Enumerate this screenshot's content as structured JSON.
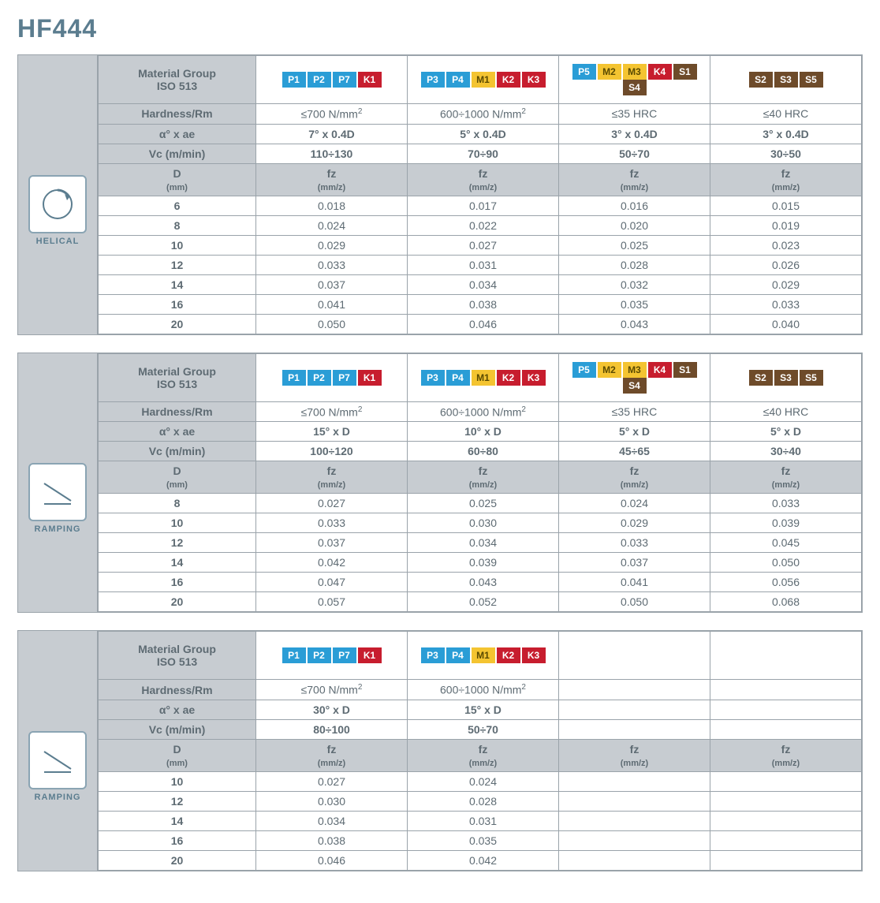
{
  "title": "HF444",
  "labels": {
    "material_group": "Material Group\nISO 513",
    "hardness": "Hardness/Rm",
    "alpha_ae": "α° x ae",
    "vc": "Vc (m/min)",
    "d": "D",
    "d_unit": "(mm)",
    "fz": "fz",
    "fz_unit": "(mm/z)"
  },
  "tag_colors": {
    "P1": "blue",
    "P2": "blue",
    "P3": "blue",
    "P4": "blue",
    "P5": "blue",
    "P7": "blue",
    "K1": "red",
    "K2": "red",
    "K3": "red",
    "K4": "red",
    "M1": "yellow",
    "M2": "yellow",
    "M3": "yellow",
    "S1": "brown",
    "S2": "brown",
    "S3": "brown",
    "S4": "brown",
    "S5": "brown"
  },
  "blocks": [
    {
      "icon": "helical",
      "icon_label": "HELICAL",
      "cols": [
        {
          "tags": [
            "P1",
            "P2",
            "P7",
            "K1"
          ],
          "hardness": "≤700 N/mm²",
          "alpha": "7° x 0.4D",
          "vc": "110÷130"
        },
        {
          "tags": [
            "P3",
            "P4",
            "M1",
            "K2",
            "K3"
          ],
          "hardness": "600÷1000 N/mm²",
          "alpha": "5° x 0.4D",
          "vc": "70÷90"
        },
        {
          "tags": [
            "P5",
            "M2",
            "M3",
            "K4",
            "S1",
            "S4"
          ],
          "hardness": "≤35 HRC",
          "alpha": "3° x 0.4D",
          "vc": "50÷70"
        },
        {
          "tags": [
            "S2",
            "S3",
            "S5"
          ],
          "hardness": "≤40 HRC",
          "alpha": "3° x 0.4D",
          "vc": "30÷50"
        }
      ],
      "rows": [
        {
          "d": "6",
          "fz": [
            "0.018",
            "0.017",
            "0.016",
            "0.015"
          ]
        },
        {
          "d": "8",
          "fz": [
            "0.024",
            "0.022",
            "0.020",
            "0.019"
          ]
        },
        {
          "d": "10",
          "fz": [
            "0.029",
            "0.027",
            "0.025",
            "0.023"
          ]
        },
        {
          "d": "12",
          "fz": [
            "0.033",
            "0.031",
            "0.028",
            "0.026"
          ]
        },
        {
          "d": "14",
          "fz": [
            "0.037",
            "0.034",
            "0.032",
            "0.029"
          ]
        },
        {
          "d": "16",
          "fz": [
            "0.041",
            "0.038",
            "0.035",
            "0.033"
          ]
        },
        {
          "d": "20",
          "fz": [
            "0.050",
            "0.046",
            "0.043",
            "0.040"
          ]
        }
      ]
    },
    {
      "icon": "ramping",
      "icon_label": "RAMPING",
      "cols": [
        {
          "tags": [
            "P1",
            "P2",
            "P7",
            "K1"
          ],
          "hardness": "≤700 N/mm²",
          "alpha": "15° x D",
          "vc": "100÷120"
        },
        {
          "tags": [
            "P3",
            "P4",
            "M1",
            "K2",
            "K3"
          ],
          "hardness": "600÷1000 N/mm²",
          "alpha": "10° x D",
          "vc": "60÷80"
        },
        {
          "tags": [
            "P5",
            "M2",
            "M3",
            "K4",
            "S1",
            "S4"
          ],
          "hardness": "≤35 HRC",
          "alpha": "5° x D",
          "vc": "45÷65"
        },
        {
          "tags": [
            "S2",
            "S3",
            "S5"
          ],
          "hardness": "≤40 HRC",
          "alpha": "5° x D",
          "vc": "30÷40"
        }
      ],
      "rows": [
        {
          "d": "8",
          "fz": [
            "0.027",
            "0.025",
            "0.024",
            "0.033"
          ]
        },
        {
          "d": "10",
          "fz": [
            "0.033",
            "0.030",
            "0.029",
            "0.039"
          ]
        },
        {
          "d": "12",
          "fz": [
            "0.037",
            "0.034",
            "0.033",
            "0.045"
          ]
        },
        {
          "d": "14",
          "fz": [
            "0.042",
            "0.039",
            "0.037",
            "0.050"
          ]
        },
        {
          "d": "16",
          "fz": [
            "0.047",
            "0.043",
            "0.041",
            "0.056"
          ]
        },
        {
          "d": "20",
          "fz": [
            "0.057",
            "0.052",
            "0.050",
            "0.068"
          ]
        }
      ]
    },
    {
      "icon": "ramping",
      "icon_label": "RAMPING",
      "cols": [
        {
          "tags": [
            "P1",
            "P2",
            "P7",
            "K1"
          ],
          "hardness": "≤700 N/mm²",
          "alpha": "30° x D",
          "vc": "80÷100"
        },
        {
          "tags": [
            "P3",
            "P4",
            "M1",
            "K2",
            "K3"
          ],
          "hardness": "600÷1000 N/mm²",
          "alpha": "15° x D",
          "vc": "50÷70"
        },
        {
          "tags": [],
          "hardness": "",
          "alpha": "",
          "vc": ""
        },
        {
          "tags": [],
          "hardness": "",
          "alpha": "",
          "vc": ""
        }
      ],
      "rows": [
        {
          "d": "10",
          "fz": [
            "0.027",
            "0.024",
            "",
            ""
          ]
        },
        {
          "d": "12",
          "fz": [
            "0.030",
            "0.028",
            "",
            ""
          ]
        },
        {
          "d": "14",
          "fz": [
            "0.034",
            "0.031",
            "",
            ""
          ]
        },
        {
          "d": "16",
          "fz": [
            "0.038",
            "0.035",
            "",
            ""
          ]
        },
        {
          "d": "20",
          "fz": [
            "0.046",
            "0.042",
            "",
            ""
          ]
        }
      ]
    }
  ]
}
